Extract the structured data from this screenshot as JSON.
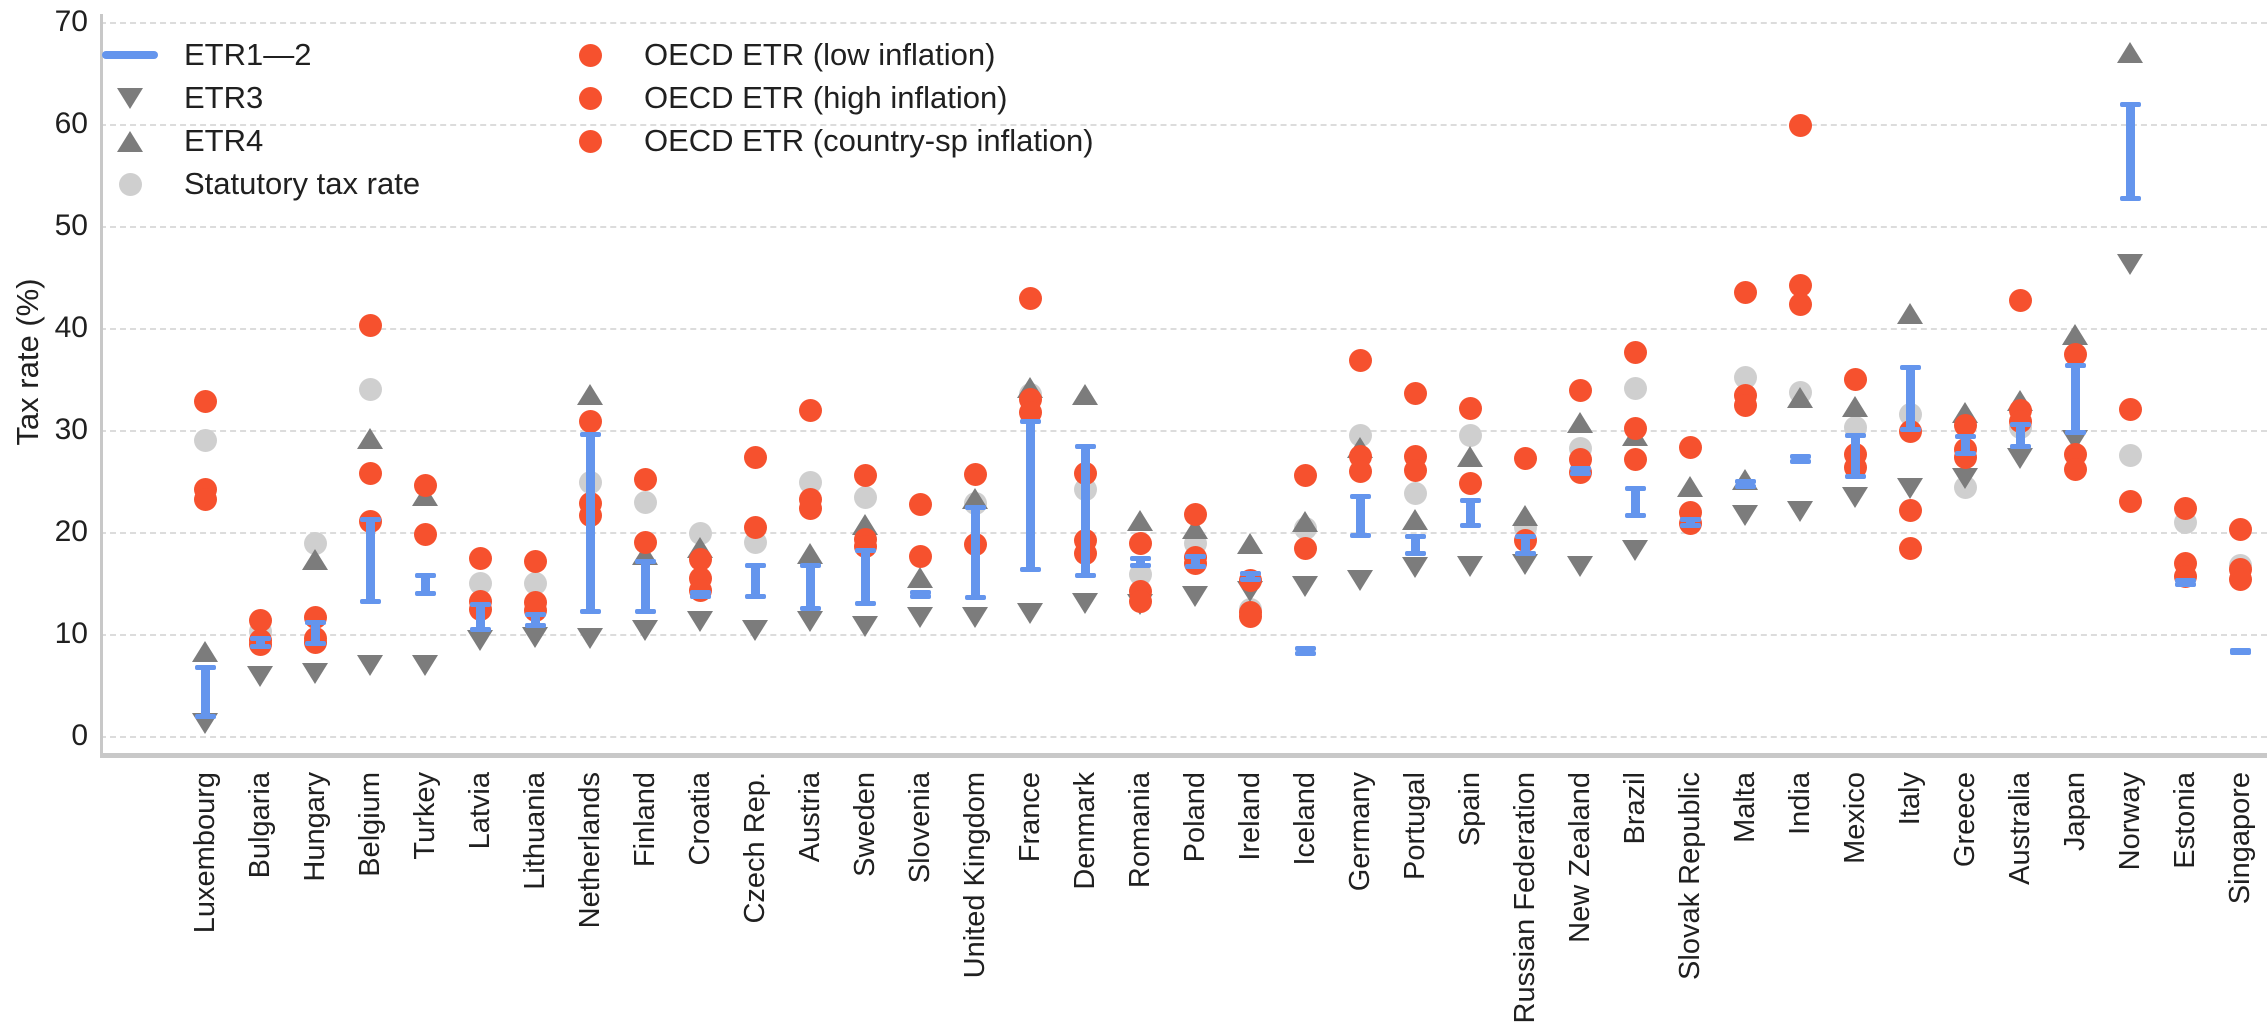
{
  "colors": {
    "oecd_red": "#f6512e",
    "etr12_blue": "#6495ed",
    "triangle_gray": "#7c7c7c",
    "statutory_lightgray": "#cfcfcf",
    "grid": "#dcdcdc",
    "spine": "#c8c8c8",
    "text": "#202020"
  },
  "chart_data": {
    "type": "scatter",
    "title": "",
    "xlabel": "",
    "ylabel": "Tax rate (%)",
    "ylim": [
      0,
      70
    ],
    "yticks": [
      0,
      10,
      20,
      30,
      40,
      50,
      60,
      70
    ],
    "grid": "horizontal-dashed",
    "legend": {
      "position": "top-left",
      "columns": [
        [
          {
            "label": "ETR1—2",
            "marker": "blue-line"
          },
          {
            "label": "ETR3",
            "marker": "triangle-down"
          },
          {
            "label": "ETR4",
            "marker": "triangle-up"
          },
          {
            "label": "Statutory tax rate",
            "marker": "lightgray-circle"
          }
        ],
        [
          {
            "label": "OECD ETR (low inflation)",
            "marker": "red-circle"
          },
          {
            "label": "OECD ETR (high inflation)",
            "marker": "red-circle"
          },
          {
            "label": "OECD ETR (country-sp inflation)",
            "marker": "red-circle"
          }
        ]
      ]
    },
    "series_legend": [
      "ETR1—2 (blue range bar)",
      "ETR3 (down triangle)",
      "ETR4 (up triangle)",
      "Statutory tax rate (light circle)",
      "OECD ETR (red circles)"
    ],
    "countries": [
      {
        "name": "Luxembourg",
        "etr12_range": [
          1.9,
          6.8
        ],
        "etr3": 1.3,
        "etr4": 8.2,
        "statutory": 29.0,
        "oecd_etr": [
          32.8,
          24.2,
          23.2
        ]
      },
      {
        "name": "Bulgaria",
        "etr12_range": [
          8.7,
          9.6
        ],
        "etr3": 5.9,
        "etr4": null,
        "statutory": 10.2,
        "oecd_etr": [
          11.3,
          9.4,
          9.0
        ]
      },
      {
        "name": "Hungary",
        "etr12_range": [
          9.0,
          11.2
        ],
        "etr3": 6.2,
        "etr4": 17.3,
        "statutory": 18.9,
        "oecd_etr": [
          11.6,
          9.6,
          9.2
        ]
      },
      {
        "name": "Belgium",
        "etr12_range": [
          13.1,
          21.3
        ],
        "etr3": 7.0,
        "etr4": 29.1,
        "statutory": 34.0,
        "oecd_etr": [
          40.2,
          25.7,
          21.0
        ]
      },
      {
        "name": "Turkey",
        "etr12_range": [
          13.9,
          15.8
        ],
        "etr3": 7.0,
        "etr4": 23.5,
        "statutory": null,
        "oecd_etr": [
          24.6,
          19.8,
          null
        ]
      },
      {
        "name": "Latvia",
        "etr12_range": [
          10.4,
          12.9
        ],
        "etr3": 9.4,
        "etr4": null,
        "statutory": 15.0,
        "oecd_etr": [
          17.4,
          13.2,
          12.4
        ]
      },
      {
        "name": "Lithuania",
        "etr12_range": [
          10.8,
          12.0
        ],
        "etr3": 9.7,
        "etr4": null,
        "statutory": 15.0,
        "oecd_etr": [
          17.1,
          13.1,
          12.3
        ]
      },
      {
        "name": "Netherlands",
        "etr12_range": [
          12.2,
          29.6
        ],
        "etr3": 9.6,
        "etr4": 33.4,
        "statutory": 24.9,
        "oecd_etr": [
          30.8,
          22.8,
          21.6
        ]
      },
      {
        "name": "Finland",
        "etr12_range": [
          12.2,
          17.2
        ],
        "etr3": 10.4,
        "etr4": 17.7,
        "statutory": 22.9,
        "oecd_etr": [
          25.1,
          19.0,
          null
        ]
      },
      {
        "name": "Croatia",
        "etr12_range": [
          13.6,
          14.1
        ],
        "etr3": 11.3,
        "etr4": 18.4,
        "statutory": 19.9,
        "oecd_etr": [
          17.3,
          15.4,
          14.3
        ]
      },
      {
        "name": "Czech Rep.",
        "etr12_range": [
          13.6,
          16.8
        ],
        "etr3": 10.4,
        "etr4": null,
        "statutory": 19.0,
        "oecd_etr": [
          27.3,
          20.4,
          null
        ]
      },
      {
        "name": "Austria",
        "etr12_range": [
          12.5,
          16.8
        ],
        "etr3": 11.3,
        "etr4": 17.8,
        "statutory": 24.9,
        "oecd_etr": [
          31.9,
          23.2,
          22.3
        ]
      },
      {
        "name": "Sweden",
        "etr12_range": [
          12.9,
          18.2
        ],
        "etr3": 10.8,
        "etr4": 20.7,
        "statutory": 23.4,
        "oecd_etr": [
          25.5,
          19.3,
          18.6
        ]
      },
      {
        "name": "Slovenia",
        "etr12_range": [
          13.6,
          14.1
        ],
        "etr3": 11.7,
        "etr4": 15.5,
        "statutory": null,
        "oecd_etr": [
          22.7,
          17.6,
          null
        ]
      },
      {
        "name": "United Kingdom",
        "etr12_range": [
          13.5,
          22.5
        ],
        "etr3": 11.7,
        "etr4": 23.2,
        "statutory": 22.8,
        "oecd_etr": [
          25.6,
          18.8,
          null
        ]
      },
      {
        "name": "France",
        "etr12_range": [
          16.3,
          30.9
        ],
        "etr3": 12.1,
        "etr4": 34.1,
        "statutory": 33.5,
        "oecd_etr": [
          42.9,
          33.0,
          31.7
        ]
      },
      {
        "name": "Denmark",
        "etr12_range": [
          15.7,
          28.4
        ],
        "etr3": 13.0,
        "etr4": 33.4,
        "statutory": 24.2,
        "oecd_etr": [
          25.7,
          19.2,
          17.9
        ]
      },
      {
        "name": "Romania",
        "etr12_range": [
          16.7,
          17.5
        ],
        "etr3": 12.9,
        "etr4": 21.1,
        "statutory": 15.8,
        "oecd_etr": [
          18.9,
          14.2,
          13.2
        ]
      },
      {
        "name": "Poland",
        "etr12_range": [
          16.6,
          17.6
        ],
        "etr3": 13.7,
        "etr4": 20.3,
        "statutory": 18.9,
        "oecd_etr": [
          21.7,
          17.5,
          16.9
        ]
      },
      {
        "name": "Ireland",
        "etr12_range": [
          15.3,
          16.0
        ],
        "etr3": 14.2,
        "etr4": 18.8,
        "statutory": 12.4,
        "oecd_etr": [
          15.2,
          12.1,
          11.7
        ]
      },
      {
        "name": "Iceland",
        "etr12_range": [
          8.0,
          8.6
        ],
        "etr3": 14.7,
        "etr4": 21.0,
        "statutory": 20.3,
        "oecd_etr": [
          25.5,
          18.4,
          null
        ]
      },
      {
        "name": "Germany",
        "etr12_range": [
          19.6,
          23.5
        ],
        "etr3": 15.3,
        "etr4": 28.2,
        "statutory": 29.5,
        "oecd_etr": [
          36.8,
          27.4,
          25.9
        ]
      },
      {
        "name": "Portugal",
        "etr12_range": [
          17.8,
          19.6
        ],
        "etr3": 16.6,
        "etr4": 21.2,
        "statutory": 23.8,
        "oecd_etr": [
          33.6,
          27.4,
          26.0
        ]
      },
      {
        "name": "Spain",
        "etr12_range": [
          20.6,
          23.1
        ],
        "etr3": 16.7,
        "etr4": 27.4,
        "statutory": 29.5,
        "oecd_etr": [
          32.1,
          24.8,
          null
        ]
      },
      {
        "name": "Russian Federation",
        "etr12_range": [
          17.8,
          19.6
        ],
        "etr3": 16.9,
        "etr4": 21.6,
        "statutory": 20.4,
        "oecd_etr": [
          27.2,
          19.2,
          null
        ]
      },
      {
        "name": "New Zealand",
        "etr12_range": [
          25.7,
          26.3
        ],
        "etr3": 16.7,
        "etr4": 30.7,
        "statutory": 28.2,
        "oecd_etr": [
          33.9,
          27.1,
          25.8
        ]
      },
      {
        "name": "Brazil",
        "etr12_range": [
          21.6,
          24.3
        ],
        "etr3": 18.2,
        "etr4": 29.4,
        "statutory": 34.1,
        "oecd_etr": [
          37.6,
          30.1,
          27.1
        ]
      },
      {
        "name": "Slovak Republic",
        "etr12_range": [
          20.6,
          21.3
        ],
        "etr3": null,
        "etr4": 24.4,
        "statutory": null,
        "oecd_etr": [
          28.3,
          21.9,
          20.8
        ]
      },
      {
        "name": "Malta",
        "etr12_range": [
          24.4,
          25.0
        ],
        "etr3": 21.7,
        "etr4": 25.1,
        "statutory": 35.1,
        "oecd_etr": [
          43.5,
          33.4,
          32.4
        ]
      },
      {
        "name": "India",
        "etr12_range": [
          26.9,
          27.5
        ],
        "etr3": 22.1,
        "etr4": 33.1,
        "statutory": 33.7,
        "oecd_etr": [
          59.9,
          44.2,
          42.3
        ]
      },
      {
        "name": "Mexico",
        "etr12_range": [
          25.4,
          29.5
        ],
        "etr3": 23.4,
        "etr4": 32.3,
        "statutory": 30.2,
        "oecd_etr": [
          35.0,
          27.6,
          26.3
        ]
      },
      {
        "name": "Italy",
        "etr12_range": [
          30.0,
          36.2
        ],
        "etr3": 24.3,
        "etr4": 41.4,
        "statutory": 31.5,
        "oecd_etr": [
          29.9,
          22.1,
          18.4
        ]
      },
      {
        "name": "Greece",
        "etr12_range": [
          27.6,
          29.4
        ],
        "etr3": 25.3,
        "etr4": 31.7,
        "statutory": 24.4,
        "oecd_etr": [
          30.4,
          28.1,
          27.3
        ]
      },
      {
        "name": "Australia",
        "etr12_range": [
          28.3,
          30.6
        ],
        "etr3": 27.3,
        "etr4": 32.8,
        "statutory": 30.2,
        "oecd_etr": [
          42.7,
          31.9,
          30.8
        ]
      },
      {
        "name": "Japan",
        "etr12_range": [
          29.7,
          36.4
        ],
        "etr3": 29.0,
        "etr4": 39.3,
        "statutory": null,
        "oecd_etr": [
          37.4,
          27.6,
          26.1
        ]
      },
      {
        "name": "Norway",
        "etr12_range": [
          52.6,
          62.0
        ],
        "etr3": 46.3,
        "etr4": 67.0,
        "statutory": 27.5,
        "oecd_etr": [
          32.0,
          23.0,
          null
        ]
      },
      {
        "name": "Estonia",
        "etr12_range": [
          14.8,
          15.3
        ],
        "etr3": null,
        "etr4": null,
        "statutory": 20.9,
        "oecd_etr": [
          22.3,
          16.9,
          15.6
        ]
      },
      {
        "name": "Singapore",
        "etr12_range": [
          8.2,
          8.4
        ],
        "etr3": null,
        "etr4": null,
        "statutory": 16.7,
        "oecd_etr": [
          20.2,
          16.3,
          15.3
        ]
      }
    ]
  }
}
